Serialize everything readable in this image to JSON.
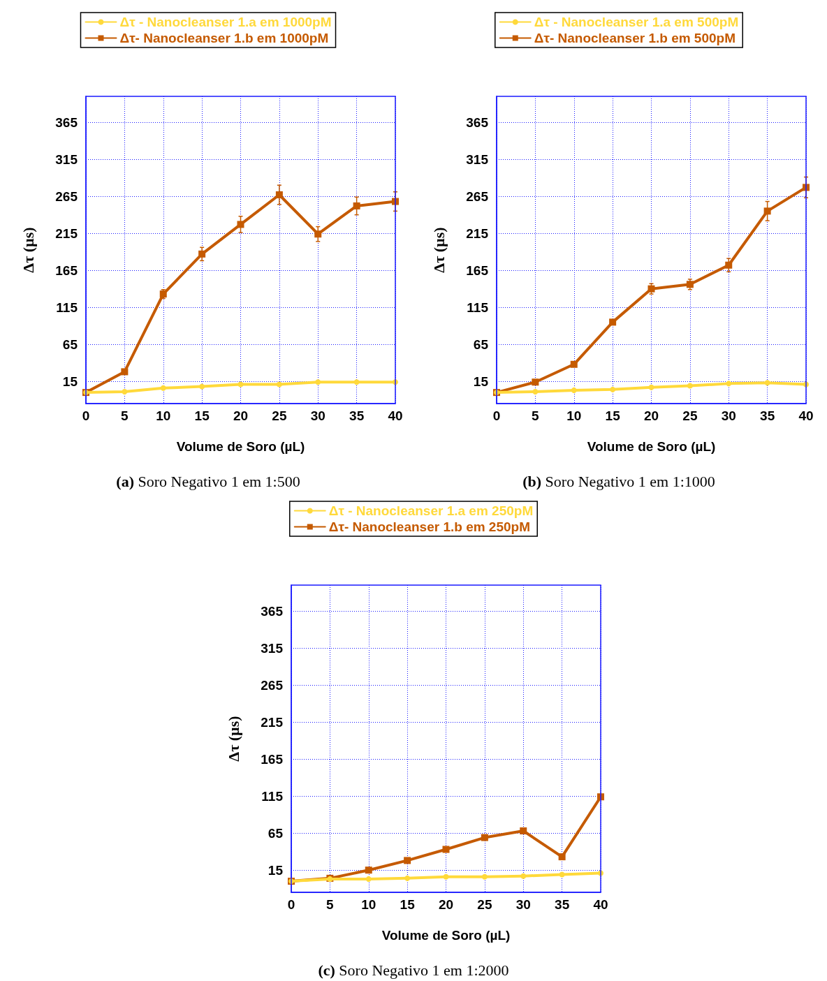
{
  "chart_data": [
    {
      "type": "line",
      "xlabel": "Volume de Soro (µL)",
      "ylabel": "Δτ (µs)",
      "annotations": [
        "(a) Soro Negativo 1 em 1:500"
      ],
      "x": [
        0,
        5,
        10,
        15,
        20,
        25,
        30,
        35,
        40
      ],
      "xlim": [
        0,
        40
      ],
      "xticks": [
        0,
        5,
        10,
        15,
        20,
        25,
        30,
        35,
        40
      ],
      "ylim": [
        -15,
        400
      ],
      "yticks": [
        15,
        65,
        115,
        165,
        215,
        265,
        315,
        365
      ],
      "grid": true,
      "legend": "top",
      "series": [
        {
          "name": "Δτ - Nanocleanser 1.a em 1000pM",
          "color": "#ffd93b",
          "marker": "circle",
          "values": [
            0,
            1,
            6,
            8,
            11,
            11,
            14,
            14,
            14
          ]
        },
        {
          "name": "Δτ- Nanocleanser 1.b em 1000pM",
          "color": "#c55a00",
          "marker": "square",
          "values": [
            0,
            28,
            133,
            187,
            227,
            267,
            214,
            252,
            258
          ],
          "errors": [
            null,
            null,
            6,
            9,
            11,
            13,
            10,
            12,
            13
          ]
        }
      ]
    },
    {
      "type": "line",
      "xlabel": "Volume de Soro (µL)",
      "ylabel": "Δτ (µs)",
      "annotations": [
        "(b) Soro Negativo 1 em 1:1000"
      ],
      "x": [
        0,
        5,
        10,
        15,
        20,
        25,
        30,
        35,
        40
      ],
      "xlim": [
        0,
        40
      ],
      "xticks": [
        0,
        5,
        10,
        15,
        20,
        25,
        30,
        35,
        40
      ],
      "ylim": [
        -15,
        400
      ],
      "yticks": [
        15,
        65,
        115,
        165,
        215,
        265,
        315,
        365
      ],
      "grid": true,
      "legend": "top",
      "series": [
        {
          "name": "Δτ - Nanocleanser 1.a em 500pM",
          "color": "#ffd93b",
          "marker": "circle",
          "values": [
            0,
            1,
            3,
            4,
            7,
            9,
            12,
            13,
            11
          ]
        },
        {
          "name": "Δτ- Nanocleanser 1.b em 500pM",
          "color": "#c55a00",
          "marker": "square",
          "values": [
            0,
            14,
            38,
            95,
            140,
            146,
            172,
            245,
            277
          ],
          "errors": [
            null,
            null,
            null,
            null,
            7,
            7,
            9,
            13,
            14
          ]
        }
      ]
    },
    {
      "type": "line",
      "xlabel": "Volume de Soro (µL)",
      "ylabel": "Δτ (µs)",
      "annotations": [
        "(c) Soro Negativo 1 em 1:2000"
      ],
      "x": [
        0,
        5,
        10,
        15,
        20,
        25,
        30,
        35,
        40
      ],
      "xlim": [
        0,
        40
      ],
      "xticks": [
        0,
        5,
        10,
        15,
        20,
        25,
        30,
        35,
        40
      ],
      "ylim": [
        -15,
        400
      ],
      "yticks": [
        15,
        65,
        115,
        165,
        215,
        265,
        315,
        365
      ],
      "grid": true,
      "legend": "top",
      "series": [
        {
          "name": "Δτ - Nanocleanser 1.a em 250pM",
          "color": "#ffd93b",
          "marker": "circle",
          "values": [
            0,
            3,
            3,
            4,
            6,
            6,
            7,
            9,
            11
          ]
        },
        {
          "name": "Δτ- Nanocleanser 1.b em 250pM",
          "color": "#c55a00",
          "marker": "square",
          "values": [
            0,
            4,
            15,
            28,
            43,
            59,
            68,
            33,
            114
          ]
        }
      ]
    }
  ]
}
